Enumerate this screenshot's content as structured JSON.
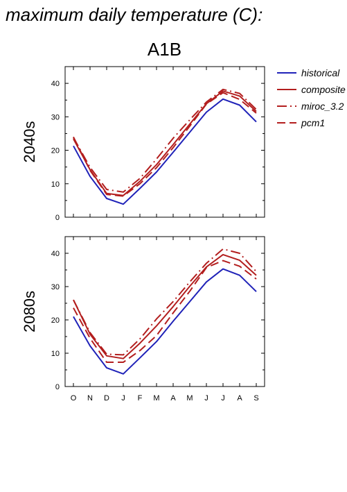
{
  "heading": "maximum daily temperature (C):",
  "scenario": "A1B",
  "colors": {
    "historical": "#1f22b8",
    "model": "#b31e1e"
  },
  "legend": [
    {
      "name": "historical",
      "color": "#1f22b8",
      "dash": "solid"
    },
    {
      "name": "composite",
      "color": "#b31e1e",
      "dash": "solid"
    },
    {
      "name": "miroc_3.2",
      "color": "#b31e1e",
      "dash": "dashdot"
    },
    {
      "name": "pcm1",
      "color": "#b31e1e",
      "dash": "dash"
    }
  ],
  "chart_data": [
    {
      "type": "line",
      "panel_label": "2040s",
      "categories": [
        "O",
        "N",
        "D",
        "J",
        "F",
        "M",
        "A",
        "M",
        "J",
        "J",
        "A",
        "S"
      ],
      "ylim": [
        0,
        45
      ],
      "yticks": [
        0,
        10,
        20,
        30,
        40
      ],
      "grid": false,
      "legend_position": "right",
      "series": [
        {
          "name": "historical",
          "values": [
            21.3,
            12.2,
            5.6,
            3.9,
            8.6,
            13.5,
            19.4,
            25.4,
            31.4,
            35.3,
            33.5,
            28.5
          ]
        },
        {
          "name": "composite",
          "values": [
            23.4,
            14.2,
            7.1,
            6.5,
            10.7,
            15.7,
            21.7,
            27.8,
            33.9,
            37.7,
            36.2,
            31.6
          ]
        },
        {
          "name": "miroc_3.2",
          "values": [
            23.8,
            14.9,
            8.3,
            7.5,
            11.6,
            17.4,
            23.6,
            29.1,
            34.4,
            38.2,
            37.0,
            32.2
          ]
        },
        {
          "name": "pcm1",
          "values": [
            24.0,
            14.0,
            6.8,
            6.3,
            10.0,
            14.8,
            20.8,
            27.2,
            33.8,
            37.2,
            35.2,
            31.1
          ]
        }
      ]
    },
    {
      "type": "line",
      "panel_label": "2080s",
      "categories": [
        "O",
        "N",
        "D",
        "J",
        "F",
        "M",
        "A",
        "M",
        "J",
        "J",
        "A",
        "S"
      ],
      "ylim": [
        0,
        45
      ],
      "yticks": [
        0,
        10,
        20,
        30,
        40
      ],
      "grid": false,
      "series": [
        {
          "name": "historical",
          "values": [
            21.0,
            12.2,
            5.6,
            3.8,
            8.6,
            13.5,
            19.6,
            25.5,
            31.4,
            35.3,
            33.4,
            28.5
          ]
        },
        {
          "name": "composite",
          "values": [
            26.0,
            15.7,
            9.2,
            8.4,
            13.0,
            18.2,
            24.0,
            30.1,
            35.9,
            39.6,
            37.9,
            33.4
          ]
        },
        {
          "name": "miroc_3.2",
          "values": [
            26.0,
            16.2,
            9.7,
            9.5,
            14.3,
            20.3,
            25.5,
            31.4,
            37.0,
            41.3,
            40.0,
            34.5
          ]
        },
        {
          "name": "pcm1",
          "values": [
            23.6,
            14.5,
            7.3,
            7.3,
            10.8,
            15.3,
            22.1,
            28.6,
            35.7,
            37.8,
            36.1,
            32.3
          ]
        }
      ]
    }
  ]
}
